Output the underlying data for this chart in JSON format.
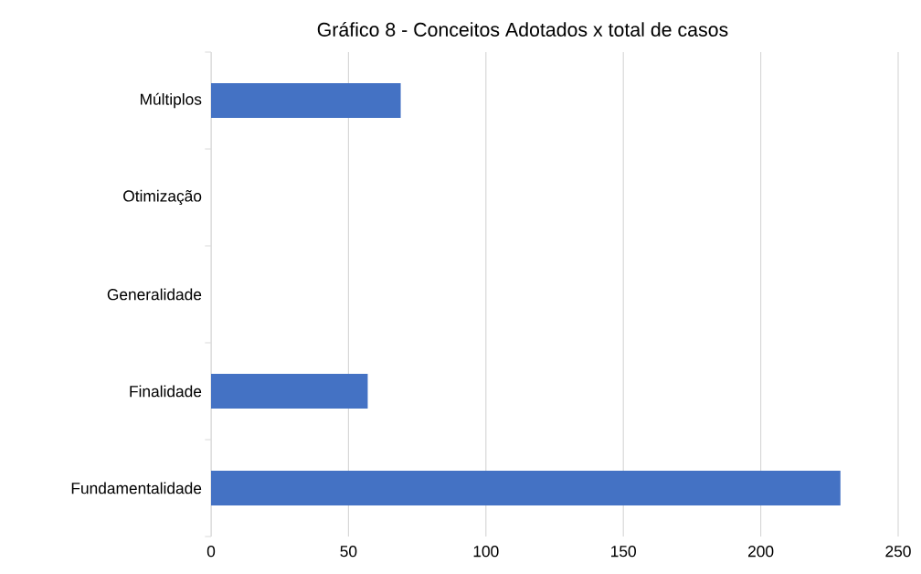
{
  "chart_data": {
    "type": "bar",
    "orientation": "horizontal",
    "title": "Gráfico 8 - Conceitos Adotados x total de casos",
    "categories": [
      "Múltiplos",
      "Otimização",
      "Generalidade",
      "Finalidade",
      "Fundamentalidade"
    ],
    "values": [
      69,
      0,
      0,
      57,
      229
    ],
    "color": "#4472c4",
    "xlim": [
      0,
      250
    ],
    "xticks": [
      0,
      50,
      100,
      150,
      200,
      250
    ],
    "grid": "x"
  }
}
